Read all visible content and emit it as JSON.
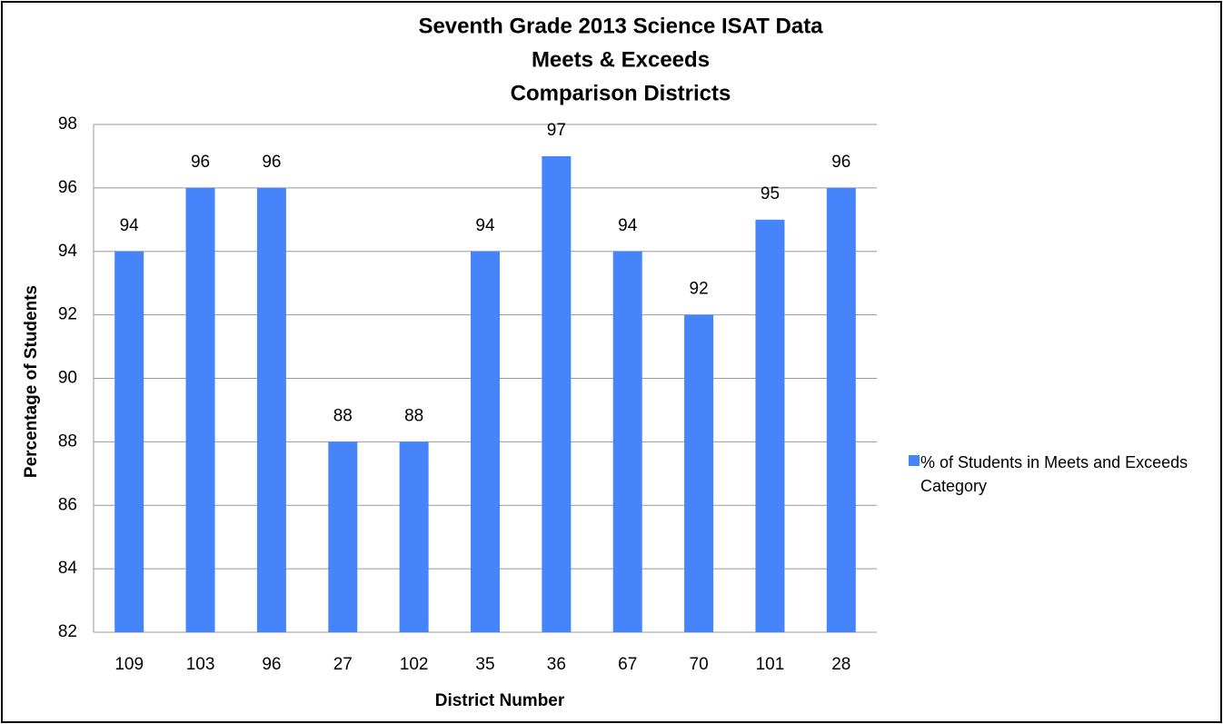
{
  "chart_data": {
    "type": "bar",
    "title": [
      "Seventh Grade 2013 Science ISAT Data",
      "Meets & Exceeds",
      "Comparison Districts"
    ],
    "x_label": "District Number",
    "y_label": "Percentage of Students",
    "categories": [
      "109",
      "103",
      "96",
      "27",
      "102",
      "35",
      "36",
      "67",
      "70",
      "101",
      "28"
    ],
    "series": [
      {
        "name": "% of Students in Meets and Exceeds Category",
        "color": "#4684fb",
        "values": [
          94,
          96,
          96,
          88,
          88,
          94,
          97,
          94,
          92,
          95,
          96
        ]
      }
    ],
    "ylim": [
      82,
      98
    ],
    "yticks": [
      82,
      84,
      86,
      88,
      90,
      92,
      94,
      96,
      98
    ],
    "grid": true,
    "legend": "right"
  }
}
